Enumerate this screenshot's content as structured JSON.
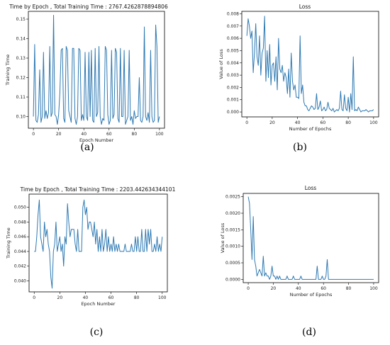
{
  "chart_data": [
    {
      "type": "line",
      "caption": "(a)",
      "title": "Time by Epoch , Total Training Time : 2767.4262878894806",
      "xlabel": "Epoch Number",
      "ylabel": "Training Time",
      "xlim": [
        -4,
        104
      ],
      "ylim": [
        0.094,
        0.154
      ],
      "xticks": [
        0,
        20,
        40,
        60,
        80,
        100
      ],
      "yticks": [
        0.1,
        0.11,
        0.12,
        0.13,
        0.14,
        0.15
      ],
      "ytick_labels": [
        "0.10",
        "0.11",
        "0.12",
        "0.13",
        "0.14",
        "0.15"
      ],
      "series": [
        {
          "values": [
            0.1,
            0.137,
            0.098,
            0.097,
            0.101,
            0.124,
            0.097,
            0.1,
            0.133,
            0.099,
            0.103,
            0.099,
            0.102,
            0.136,
            0.1,
            0.102,
            0.152,
            0.101,
            0.1,
            0.096,
            0.101,
            0.112,
            0.134,
            0.135,
            0.099,
            0.097,
            0.136,
            0.134,
            0.103,
            0.1,
            0.097,
            0.135,
            0.135,
            0.099,
            0.096,
            0.1,
            0.135,
            0.134,
            0.098,
            0.101,
            0.098,
            0.133,
            0.1,
            0.098,
            0.133,
            0.1,
            0.134,
            0.098,
            0.097,
            0.135,
            0.1,
            0.102,
            0.136,
            0.1,
            0.096,
            0.099,
            0.098,
            0.136,
            0.134,
            0.101,
            0.096,
            0.098,
            0.134,
            0.099,
            0.101,
            0.135,
            0.133,
            0.099,
            0.097,
            0.135,
            0.1,
            0.1,
            0.134,
            0.096,
            0.098,
            0.1,
            0.134,
            0.098,
            0.1,
            0.096,
            0.103,
            0.099,
            0.1,
            0.1,
            0.12,
            0.098,
            0.097,
            0.1,
            0.146,
            0.1,
            0.098,
            0.102,
            0.097,
            0.134,
            0.1,
            0.097,
            0.098,
            0.147,
            0.136,
            0.097,
            0.1
          ]
        }
      ]
    },
    {
      "type": "line",
      "caption": "(b)",
      "title": "Loss",
      "xlabel": "Number of Epochs",
      "ylabel": "Value of Loss",
      "xlim": [
        -4,
        104
      ],
      "ylim": [
        -0.0004,
        0.0082
      ],
      "xticks": [
        0,
        20,
        40,
        60,
        80,
        100
      ],
      "yticks": [
        0.0,
        0.001,
        0.002,
        0.003,
        0.004,
        0.005,
        0.006,
        0.007,
        0.008
      ],
      "ytick_labels": [
        "0.000",
        "0.001",
        "0.002",
        "0.003",
        "0.004",
        "0.005",
        "0.006",
        "0.007",
        "0.008"
      ],
      "series": [
        {
          "values": [
            0.0062,
            0.0076,
            0.007,
            0.006,
            0.0066,
            0.0032,
            0.0048,
            0.0072,
            0.0045,
            0.0038,
            0.0062,
            0.003,
            0.0048,
            0.0052,
            0.0078,
            0.0025,
            0.005,
            0.0028,
            0.0055,
            0.0022,
            0.0038,
            0.004,
            0.0025,
            0.0045,
            0.0018,
            0.006,
            0.0035,
            0.0032,
            0.0038,
            0.0025,
            0.0032,
            0.0028,
            0.0015,
            0.0035,
            0.0012,
            0.0048,
            0.0025,
            0.0018,
            0.0022,
            0.0012,
            0.0012,
            0.0011,
            0.0062,
            0.0015,
            0.0022,
            0.0008,
            0.0005,
            0.0005,
            0.0002,
            0.0001,
            0.0003,
            0.0005,
            0.0004,
            0.0002,
            0.0003,
            0.0015,
            0.0002,
            0.0004,
            0.0009,
            0.0001,
            0.0002,
            0.0004,
            0.0001,
            0.0002,
            0.0008,
            0.0003,
            0.0002,
            0.0001,
            0.0003,
            0.0,
            0.0001,
            0.0002,
            0.0001,
            0.0003,
            0.0017,
            0.0002,
            0.0001,
            0.0014,
            0.0003,
            0.0001,
            0.0012,
            0.0,
            0.0015,
            0.0002,
            0.0045,
            0.0001,
            0.0002,
            0.0001,
            0.0004,
            0.0002,
            0.0,
            0.0001,
            0.0001,
            0.0001,
            0.0002,
            0.0001,
            0.0,
            0.0001,
            0.0001,
            0.0001,
            0.0002
          ]
        }
      ]
    },
    {
      "type": "line",
      "caption": "(c)",
      "title": "Time by Epoch , Total Training Time : 2203.442634344101",
      "xlabel": "Epoch Number",
      "ylabel": "Training Time",
      "xlim": [
        -4,
        104
      ],
      "ylim": [
        0.0385,
        0.0518
      ],
      "xticks": [
        0,
        20,
        40,
        60,
        80,
        100
      ],
      "yticks": [
        0.04,
        0.042,
        0.044,
        0.046,
        0.048,
        0.05
      ],
      "ytick_labels": [
        "0.040",
        "0.042",
        "0.044",
        "0.046",
        "0.048",
        "0.050"
      ],
      "series": [
        {
          "values": [
            0.044,
            0.044,
            0.046,
            0.049,
            0.051,
            0.046,
            0.045,
            0.044,
            0.048,
            0.046,
            0.047,
            0.045,
            0.044,
            0.0405,
            0.039,
            0.044,
            0.045,
            0.048,
            0.044,
            0.045,
            0.046,
            0.044,
            0.045,
            0.042,
            0.046,
            0.045,
            0.0505,
            0.048,
            0.046,
            0.047,
            0.047,
            0.047,
            0.045,
            0.044,
            0.047,
            0.044,
            0.044,
            0.044,
            0.05,
            0.051,
            0.049,
            0.05,
            0.047,
            0.048,
            0.048,
            0.047,
            0.046,
            0.048,
            0.045,
            0.047,
            0.044,
            0.046,
            0.044,
            0.047,
            0.044,
            0.045,
            0.047,
            0.044,
            0.046,
            0.044,
            0.045,
            0.044,
            0.046,
            0.044,
            0.045,
            0.044,
            0.045,
            0.044,
            0.044,
            0.044,
            0.044,
            0.045,
            0.044,
            0.044,
            0.044,
            0.044,
            0.045,
            0.044,
            0.044,
            0.046,
            0.044,
            0.046,
            0.044,
            0.044,
            0.047,
            0.044,
            0.044,
            0.047,
            0.044,
            0.047,
            0.045,
            0.047,
            0.044,
            0.044,
            0.045,
            0.044,
            0.046,
            0.044,
            0.045,
            0.044,
            0.046
          ]
        }
      ]
    },
    {
      "type": "line",
      "caption": "(d)",
      "title": "Loss",
      "xlabel": "Number of Epochs",
      "ylabel": "Value of Loss",
      "xlim": [
        -4,
        104
      ],
      "ylim": [
        -0.0001,
        0.0026
      ],
      "xticks": [
        0,
        20,
        40,
        60,
        80,
        100
      ],
      "yticks": [
        0.0,
        0.0005,
        0.001,
        0.0015,
        0.002,
        0.0025
      ],
      "ytick_labels": [
        "0.0000",
        "0.0005",
        "0.0010",
        "0.0015",
        "0.0020",
        "0.0025"
      ],
      "series": [
        {
          "values": [
            0.0025,
            0.0023,
            0.0015,
            0.0006,
            0.0019,
            0.0006,
            0.0004,
            0.0001,
            0.0002,
            0.0003,
            0.0002,
            0.0001,
            0.0007,
            0.0001,
            0.0002,
            0.0001,
            0.0001,
            0.0,
            0.0001,
            0.0004,
            0.0001,
            0.0001,
            0.0,
            0.0001,
            0.0,
            0.0001,
            0.0,
            0.0,
            0.0,
            0.0,
            0.0,
            0.0001,
            0.0,
            0.0,
            0.0,
            0.0,
            0.0001,
            0.0,
            0.0,
            0.0,
            0.0,
            0.0,
            0.0001,
            0.0,
            0.0,
            0.0,
            0.0,
            0.0,
            0.0,
            0.0,
            0.0,
            0.0,
            0.0,
            0.0,
            0.0,
            0.0004,
            0.0,
            0.0,
            0.0,
            0.0001,
            0.0,
            0.0,
            0.0001,
            0.0006,
            0.0,
            0.0,
            0.0,
            0.0,
            0.0,
            0.0,
            0.0,
            0.0,
            0.0,
            0.0,
            0.0,
            0.0,
            0.0,
            0.0,
            0.0,
            0.0,
            0.0,
            0.0,
            0.0,
            0.0,
            0.0,
            0.0,
            0.0,
            0.0,
            0.0,
            0.0,
            0.0,
            0.0,
            0.0,
            0.0,
            0.0,
            0.0,
            0.0,
            0.0,
            0.0,
            0.0,
            0.0
          ]
        }
      ]
    }
  ],
  "colors": {
    "line": "#2f7ab3",
    "axis": "#000000"
  }
}
